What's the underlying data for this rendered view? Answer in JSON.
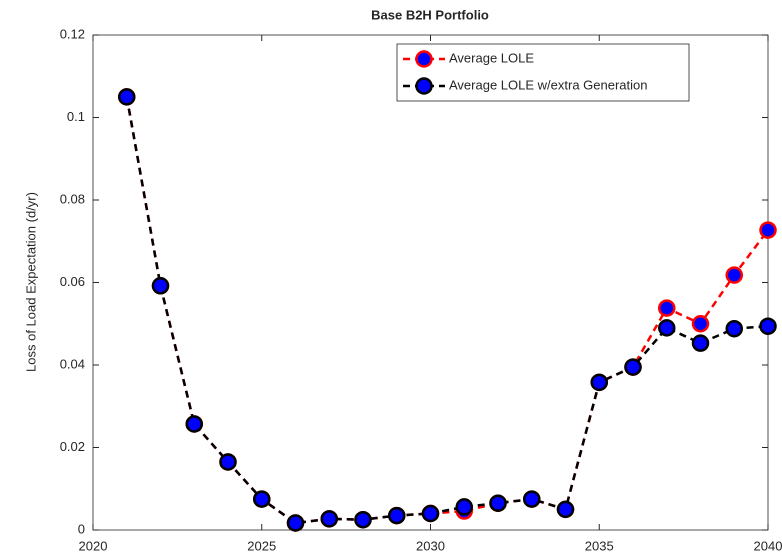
{
  "chart_data": {
    "type": "line",
    "title": "Base B2H Portfolio",
    "ylabel": "Loss of Load Expectation (d/yr)",
    "x": [
      2021,
      2022,
      2023,
      2024,
      2025,
      2026,
      2027,
      2028,
      2029,
      2030,
      2031,
      2032,
      2033,
      2034,
      2035,
      2036,
      2037,
      2038,
      2039,
      2040
    ],
    "series": [
      {
        "name": "Average LOLE",
        "color": "#ff0000",
        "marker_fill": "#0000ff",
        "values": [
          0.105,
          0.0592,
          0.0257,
          0.0165,
          0.0075,
          0.0017,
          0.0027,
          0.0025,
          0.0035,
          0.004,
          0.0046,
          0.0065,
          0.0075,
          0.005,
          0.0358,
          0.0395,
          0.0538,
          0.05,
          0.0618,
          0.0727
        ]
      },
      {
        "name": "Average LOLE w/extra Generation",
        "color": "#000000",
        "marker_fill": "#0000ff",
        "values": [
          0.105,
          0.0592,
          0.0257,
          0.0165,
          0.0075,
          0.0017,
          0.0027,
          0.0025,
          0.0035,
          0.004,
          0.0056,
          0.0065,
          0.0075,
          0.005,
          0.0358,
          0.0395,
          0.049,
          0.0453,
          0.0488,
          0.0494
        ]
      }
    ],
    "xlim": [
      2020,
      2040
    ],
    "xticks": [
      2020,
      2025,
      2030,
      2035,
      2040
    ],
    "ylim": [
      0,
      0.12
    ],
    "yticks": [
      0,
      0.02,
      0.04,
      0.06,
      0.08,
      0.1,
      0.12
    ],
    "legend": "northeast"
  }
}
